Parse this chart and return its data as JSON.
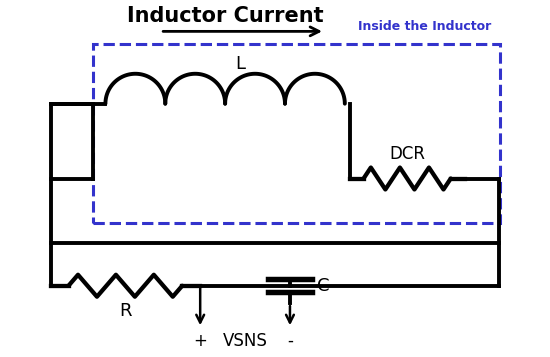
{
  "title": "Inductor Current",
  "label_inside": "Inside the Inductor",
  "label_L": "L",
  "label_DCR": "DCR",
  "label_R": "R",
  "label_C": "C",
  "label_VSNS": "VSNS",
  "label_plus": "+",
  "label_minus": "-",
  "bg_color": "#ffffff",
  "line_color": "#000000",
  "dashed_box_color": "#3333cc",
  "text_color_inside": "#3333cc",
  "lw": 2.8,
  "dashed_lw": 2.2,
  "figsize": [
    5.5,
    3.57
  ],
  "dpi": 100
}
